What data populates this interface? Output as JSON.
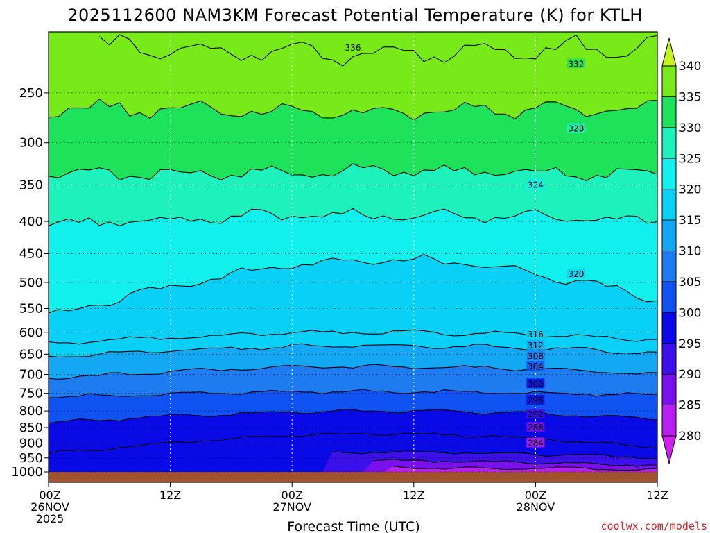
{
  "chart_data": {
    "type": "heatmap",
    "title": "2025112600 NAM3KM Forecast Potential Temperature (K) for KTLH",
    "xlabel": "Forecast Time (UTC)",
    "ylabel": "",
    "x_ticks": [
      {
        "hour": 0,
        "lines": [
          "00Z",
          "26NOV",
          "2025"
        ]
      },
      {
        "hour": 12,
        "lines": [
          "12Z"
        ]
      },
      {
        "hour": 24,
        "lines": [
          "00Z",
          "27NOV"
        ]
      },
      {
        "hour": 36,
        "lines": [
          "12Z"
        ]
      },
      {
        "hour": 48,
        "lines": [
          "00Z",
          "28NOV"
        ]
      },
      {
        "hour": 60,
        "lines": [
          "12Z"
        ]
      }
    ],
    "xlim": [
      0,
      60
    ],
    "y_ticks": [
      250,
      300,
      350,
      400,
      450,
      500,
      550,
      600,
      650,
      700,
      750,
      800,
      850,
      900,
      950,
      1000
    ],
    "ylim_hPa": [
      200,
      1013
    ],
    "colorbar": {
      "labels": [
        340,
        335,
        330,
        325,
        320,
        315,
        310,
        305,
        300,
        295,
        290,
        285,
        280
      ],
      "bins": [
        {
          "lo": 275,
          "hi": 280,
          "color": "#d020ee"
        },
        {
          "lo": 280,
          "hi": 285,
          "color": "#b820f2"
        },
        {
          "lo": 285,
          "hi": 290,
          "color": "#7a10ee"
        },
        {
          "lo": 290,
          "hi": 295,
          "color": "#3c10ea"
        },
        {
          "lo": 295,
          "hi": 300,
          "color": "#0a0ae6"
        },
        {
          "lo": 300,
          "hi": 305,
          "color": "#1052f2"
        },
        {
          "lo": 305,
          "hi": 310,
          "color": "#1e7cf0"
        },
        {
          "lo": 310,
          "hi": 315,
          "color": "#14a8f4"
        },
        {
          "lo": 315,
          "hi": 320,
          "color": "#08d0f6"
        },
        {
          "lo": 320,
          "hi": 325,
          "color": "#12f0ee"
        },
        {
          "lo": 325,
          "hi": 330,
          "color": "#1ef2bc"
        },
        {
          "lo": 330,
          "hi": 335,
          "color": "#1ee25a"
        },
        {
          "lo": 335,
          "hi": 340,
          "color": "#78ea1a"
        },
        {
          "lo": 340,
          "hi": 345,
          "color": "#c6f21e"
        }
      ]
    },
    "contour_interval": 2,
    "contours": [
      {
        "theta": 336,
        "hour": 5,
        "p": 208,
        "mid_p": 216,
        "label_hour": 30,
        "label_p": 212
      },
      {
        "theta": 332,
        "hour": 0,
        "p": 264,
        "mid_p": 268,
        "label_hour": 52,
        "label_p": 225
      },
      {
        "theta": 328,
        "hour": 0,
        "p": 338,
        "mid_p": 333,
        "label_hour": 52,
        "label_p": 285
      },
      {
        "theta": 324,
        "hour": 0,
        "p": 405,
        "mid_p": 390,
        "label_hour": 48,
        "label_p": 350
      },
      {
        "theta": 320,
        "hour": 0,
        "p": 565,
        "mid_p": 460,
        "label_hour": 52,
        "label_p": 485
      },
      {
        "theta": 316,
        "hour": 0,
        "p": 625,
        "mid_p": 600,
        "label_hour": 48,
        "label_p": 605
      },
      {
        "theta": 312,
        "hour": 0,
        "p": 655,
        "mid_p": 630,
        "label_hour": 48,
        "label_p": 630
      },
      {
        "theta": 308,
        "hour": 0,
        "p": 710,
        "mid_p": 680,
        "label_hour": 48,
        "label_p": 655
      },
      {
        "theta": 304,
        "hour": 0,
        "p": 760,
        "mid_p": 745,
        "label_hour": 48,
        "label_p": 680
      },
      {
        "theta": 300,
        "hour": 0,
        "p": 835,
        "mid_p": 800,
        "label_hour": 48,
        "label_p": 725
      },
      {
        "theta": 296,
        "hour": 0,
        "p": 935,
        "mid_p": 870,
        "label_hour": 48,
        "label_p": 770
      },
      {
        "theta": 292,
        "hour": 28,
        "p": 960,
        "mid_p": 930,
        "label_hour": 48,
        "label_p": 810
      },
      {
        "theta": 288,
        "hour": 32,
        "p": 985,
        "mid_p": 960,
        "label_hour": 48,
        "label_p": 850
      },
      {
        "theta": 284,
        "hour": 34,
        "p": 995,
        "mid_p": 985,
        "label_hour": 48,
        "label_p": 900
      }
    ],
    "ground_color": "#a0522d",
    "credit": "coolwx.com/models"
  }
}
